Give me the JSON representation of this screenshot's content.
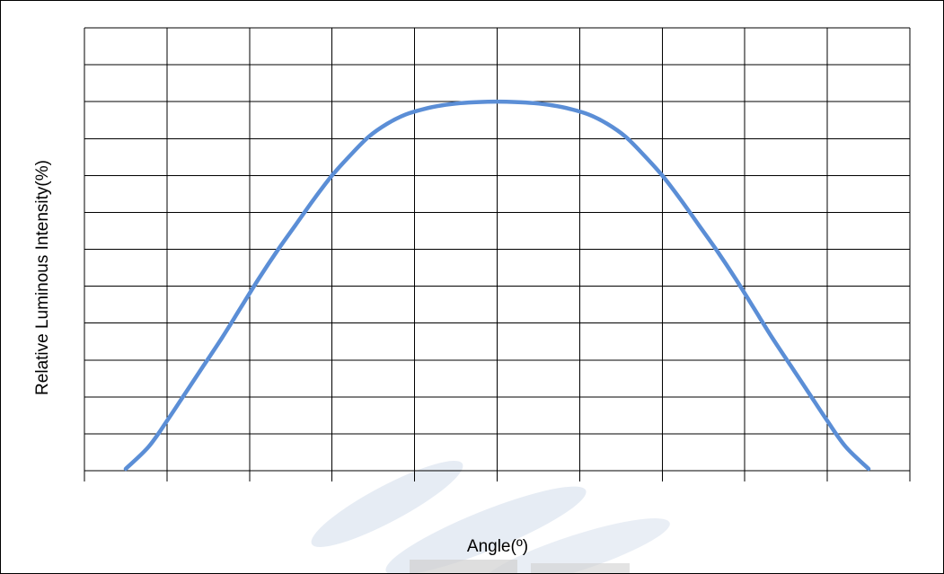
{
  "chart_data": {
    "type": "line",
    "title": "",
    "xlabel": "Angle(º)",
    "ylabel": "Relative Luminous Intensity(%)",
    "tick_labels_visible": false,
    "grid": true,
    "legend": "none",
    "x_divisions": 10,
    "y_divisions": 12,
    "xlim": [
      -90,
      90
    ],
    "ylim": [
      0,
      120
    ],
    "colors": {
      "line": "#5b8ed6",
      "grid": "#000000",
      "watermark": "#c8d4e6"
    },
    "series": [
      {
        "name": "",
        "x": [
          -81,
          -76,
          -72,
          -68,
          -64,
          -60,
          -56,
          -52,
          -48,
          -44,
          -40,
          -36,
          -32,
          -28,
          -24,
          -20,
          -16,
          -12,
          -8,
          -4,
          0,
          4,
          8,
          12,
          16,
          20,
          24,
          28,
          32,
          36,
          40,
          44,
          48,
          52,
          56,
          60,
          64,
          68,
          72,
          76,
          81
        ],
        "y": [
          0.5,
          6.5,
          13.5,
          21,
          28.5,
          36,
          44,
          52,
          59.5,
          66.5,
          73.5,
          80,
          85.5,
          90.5,
          94,
          96.5,
          98,
          99,
          99.6,
          99.9,
          100,
          99.9,
          99.6,
          99,
          98,
          96.5,
          94,
          90.5,
          85.5,
          80,
          73.5,
          66.5,
          59.5,
          52,
          44,
          36,
          28.5,
          21,
          13.5,
          6.5,
          0.5
        ]
      }
    ]
  }
}
